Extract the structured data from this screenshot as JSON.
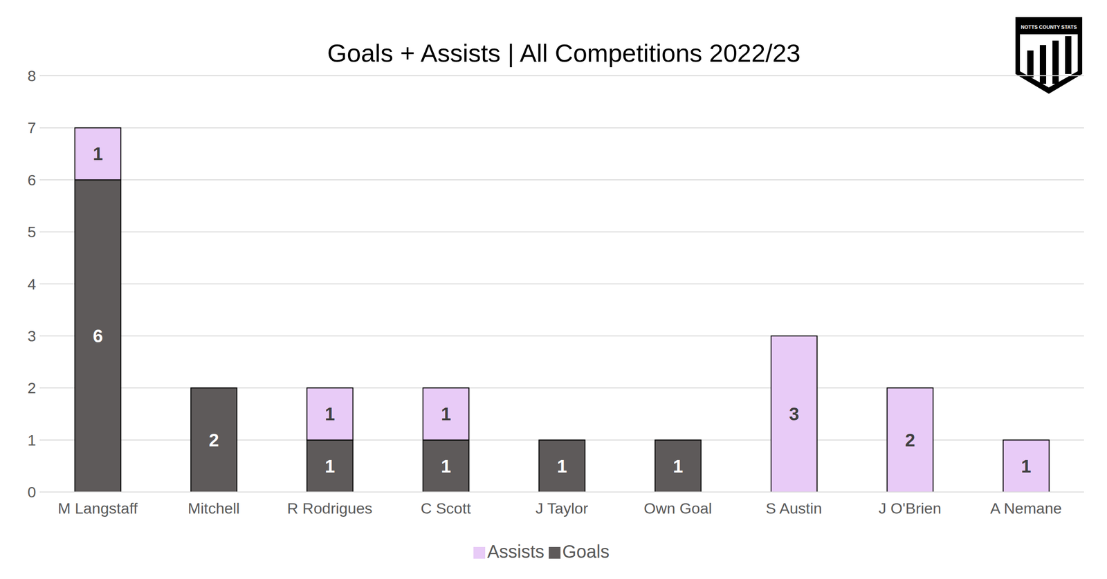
{
  "chart_data": {
    "type": "bar",
    "title": "Goals + Assists | All Competitions 2022/23",
    "annotations": [
      "NOTTS COUNTY STATS"
    ],
    "categories": [
      "M Langstaff",
      "Mitchell",
      "R Rodrigues",
      "C Scott",
      "J Taylor",
      "Own Goal",
      "S Austin",
      "J O'Brien",
      "A Nemane"
    ],
    "series": [
      {
        "name": "Goals",
        "color": "#5e5a5a",
        "values": [
          6,
          2,
          1,
          1,
          1,
          1,
          null,
          null,
          null
        ]
      },
      {
        "name": "Assists",
        "color": "#e8cbf7",
        "values": [
          1,
          null,
          1,
          1,
          null,
          null,
          3,
          2,
          1
        ]
      }
    ],
    "ylim": [
      0,
      8
    ],
    "yticks": [
      0,
      1,
      2,
      3,
      4,
      5,
      6,
      7,
      8
    ],
    "grid": true,
    "stacked": true,
    "data_labels": true,
    "legend": "bottom"
  }
}
